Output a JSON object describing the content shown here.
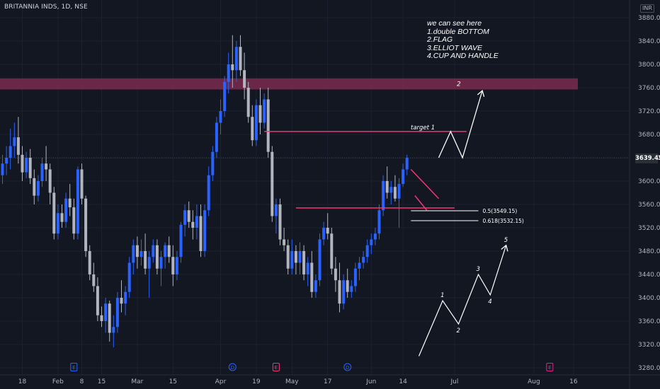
{
  "header": {
    "symbol_line": "BRITANNIA INDS, 1D, NSE"
  },
  "currency": "INR",
  "last_price": {
    "label": "3639.45",
    "value": 3639.45
  },
  "annotation": {
    "lines": [
      "we can see here",
      "1.double BOTTOM",
      "2.FLAG",
      "3.ELLIOT WAVE",
      "4.CUP AND HANDLE"
    ]
  },
  "colors": {
    "bull": "#2962ff",
    "bear": "#b2b5be",
    "zone": "#7b2a4d",
    "line": "#f23672",
    "white": "#ffffff",
    "grid": "#1c2030"
  },
  "chart_data": {
    "type": "candlestick",
    "ylim": [
      3270,
      3890
    ],
    "y_ticks": [
      3280,
      3320,
      3360,
      3400,
      3440,
      3480,
      3520,
      3560,
      3600,
      3640,
      3680,
      3720,
      3760,
      3800,
      3840,
      3880
    ],
    "x_ticks": [
      {
        "label": "18",
        "bar": 5
      },
      {
        "label": "Feb",
        "bar": 14
      },
      {
        "label": "8",
        "bar": 20
      },
      {
        "label": "15",
        "bar": 25
      },
      {
        "label": "Mar",
        "bar": 34
      },
      {
        "label": "15",
        "bar": 43
      },
      {
        "label": "Apr",
        "bar": 55
      },
      {
        "label": "19",
        "bar": 64
      },
      {
        "label": "May",
        "bar": 73
      },
      {
        "label": "17",
        "bar": 82
      },
      {
        "label": "Jun",
        "bar": 93
      },
      {
        "label": "14",
        "bar": 101
      },
      {
        "label": "Jul",
        "bar": 114
      },
      {
        "label": "Aug",
        "bar": 134
      },
      {
        "label": "16",
        "bar": 144
      }
    ],
    "events": [
      {
        "label": "E",
        "bar": 18,
        "color": "#2962ff"
      },
      {
        "label": "D",
        "bar": 58,
        "color": "#2962ff"
      },
      {
        "label": "E",
        "bar": 69,
        "color": "#f23672"
      },
      {
        "label": "D",
        "bar": 87,
        "color": "#2962ff"
      },
      {
        "label": "E",
        "bar": 138,
        "color": "#e91e8c"
      }
    ],
    "candles": [
      [
        3610,
        3645,
        3595,
        3630
      ],
      [
        3630,
        3660,
        3610,
        3640
      ],
      [
        3640,
        3690,
        3620,
        3660
      ],
      [
        3660,
        3700,
        3640,
        3675
      ],
      [
        3675,
        3710,
        3630,
        3645
      ],
      [
        3645,
        3660,
        3600,
        3615
      ],
      [
        3615,
        3650,
        3605,
        3640
      ],
      [
        3640,
        3655,
        3595,
        3605
      ],
      [
        3605,
        3620,
        3560,
        3575
      ],
      [
        3575,
        3610,
        3565,
        3600
      ],
      [
        3600,
        3640,
        3590,
        3630
      ],
      [
        3630,
        3660,
        3600,
        3620
      ],
      [
        3620,
        3630,
        3560,
        3580
      ],
      [
        3580,
        3590,
        3500,
        3510
      ],
      [
        3510,
        3560,
        3500,
        3545
      ],
      [
        3545,
        3560,
        3520,
        3530
      ],
      [
        3530,
        3580,
        3520,
        3570
      ],
      [
        3570,
        3595,
        3540,
        3555
      ],
      [
        3555,
        3570,
        3500,
        3510
      ],
      [
        3510,
        3625,
        3500,
        3620
      ],
      [
        3620,
        3630,
        3560,
        3570
      ],
      [
        3570,
        3575,
        3470,
        3480
      ],
      [
        3480,
        3490,
        3430,
        3440
      ],
      [
        3440,
        3460,
        3410,
        3420
      ],
      [
        3420,
        3435,
        3360,
        3370
      ],
      [
        3370,
        3385,
        3350,
        3360
      ],
      [
        3360,
        3400,
        3340,
        3390
      ],
      [
        3390,
        3395,
        3325,
        3340
      ],
      [
        3340,
        3370,
        3315,
        3350
      ],
      [
        3350,
        3410,
        3340,
        3400
      ],
      [
        3400,
        3430,
        3375,
        3390
      ],
      [
        3390,
        3420,
        3370,
        3410
      ],
      [
        3410,
        3470,
        3400,
        3460
      ],
      [
        3460,
        3500,
        3440,
        3490
      ],
      [
        3490,
        3505,
        3450,
        3470
      ],
      [
        3470,
        3500,
        3455,
        3480
      ],
      [
        3480,
        3510,
        3440,
        3450
      ],
      [
        3450,
        3480,
        3400,
        3470
      ],
      [
        3470,
        3500,
        3460,
        3490
      ],
      [
        3490,
        3500,
        3440,
        3450
      ],
      [
        3450,
        3480,
        3420,
        3470
      ],
      [
        3470,
        3495,
        3450,
        3490
      ],
      [
        3490,
        3505,
        3460,
        3470
      ],
      [
        3470,
        3490,
        3420,
        3440
      ],
      [
        3440,
        3480,
        3430,
        3470
      ],
      [
        3470,
        3530,
        3460,
        3525
      ],
      [
        3525,
        3560,
        3505,
        3550
      ],
      [
        3550,
        3565,
        3520,
        3530
      ],
      [
        3530,
        3550,
        3500,
        3520
      ],
      [
        3520,
        3560,
        3500,
        3540
      ],
      [
        3540,
        3560,
        3470,
        3480
      ],
      [
        3480,
        3560,
        3470,
        3550
      ],
      [
        3550,
        3625,
        3540,
        3610
      ],
      [
        3610,
        3660,
        3600,
        3650
      ],
      [
        3650,
        3710,
        3640,
        3700
      ],
      [
        3700,
        3740,
        3680,
        3720
      ],
      [
        3720,
        3780,
        3710,
        3770
      ],
      [
        3770,
        3820,
        3750,
        3800
      ],
      [
        3800,
        3850,
        3760,
        3790
      ],
      [
        3790,
        3840,
        3770,
        3830
      ],
      [
        3830,
        3850,
        3780,
        3790
      ],
      [
        3790,
        3820,
        3740,
        3760
      ],
      [
        3760,
        3770,
        3700,
        3710
      ],
      [
        3710,
        3730,
        3660,
        3670
      ],
      [
        3670,
        3740,
        3660,
        3730
      ],
      [
        3730,
        3760,
        3680,
        3700
      ],
      [
        3700,
        3750,
        3690,
        3740
      ],
      [
        3740,
        3760,
        3640,
        3650
      ],
      [
        3650,
        3660,
        3530,
        3540
      ],
      [
        3540,
        3570,
        3510,
        3560
      ],
      [
        3560,
        3570,
        3490,
        3500
      ],
      [
        3500,
        3520,
        3480,
        3490
      ],
      [
        3490,
        3500,
        3440,
        3450
      ],
      [
        3450,
        3500,
        3440,
        3480
      ],
      [
        3480,
        3490,
        3440,
        3460
      ],
      [
        3460,
        3495,
        3440,
        3480
      ],
      [
        3480,
        3490,
        3430,
        3440
      ],
      [
        3440,
        3470,
        3420,
        3460
      ],
      [
        3460,
        3480,
        3400,
        3410
      ],
      [
        3410,
        3440,
        3400,
        3430
      ],
      [
        3430,
        3510,
        3420,
        3500
      ],
      [
        3500,
        3530,
        3490,
        3520
      ],
      [
        3520,
        3545,
        3500,
        3510
      ],
      [
        3510,
        3520,
        3440,
        3450
      ],
      [
        3450,
        3470,
        3410,
        3430
      ],
      [
        3430,
        3460,
        3375,
        3390
      ],
      [
        3390,
        3440,
        3380,
        3430
      ],
      [
        3430,
        3450,
        3400,
        3410
      ],
      [
        3410,
        3430,
        3400,
        3420
      ],
      [
        3420,
        3460,
        3410,
        3450
      ],
      [
        3450,
        3470,
        3430,
        3460
      ],
      [
        3460,
        3480,
        3450,
        3470
      ],
      [
        3470,
        3500,
        3460,
        3490
      ],
      [
        3490,
        3510,
        3475,
        3500
      ],
      [
        3500,
        3520,
        3490,
        3510
      ],
      [
        3510,
        3560,
        3500,
        3550
      ],
      [
        3550,
        3610,
        3540,
        3600
      ],
      [
        3600,
        3625,
        3570,
        3580
      ],
      [
        3580,
        3600,
        3560,
        3590
      ],
      [
        3590,
        3610,
        3565,
        3570
      ],
      [
        3570,
        3605,
        3520,
        3595
      ],
      [
        3595,
        3630,
        3590,
        3620
      ],
      [
        3620,
        3645,
        3610,
        3640
      ]
    ],
    "bar_start_x": 3.5,
    "bar_spacing": 5.6,
    "horizontal_lines": [
      {
        "name": "target 1",
        "y": 3685,
        "from_bar": 66,
        "to_bar": 117
      },
      {
        "name": "",
        "y": 3554,
        "from_bar": 74,
        "to_bar": 114
      },
      {
        "name": "0.5(3549.15)",
        "y": 3549.15,
        "from_bar": 103,
        "to_bar": 120
      },
      {
        "name": "0.618(3532.15)",
        "y": 3532.15,
        "from_bar": 103,
        "to_bar": 120
      }
    ],
    "resistance_zone": {
      "y_low": 3757,
      "y_high": 3776,
      "label": "2"
    },
    "flag_lines": [
      {
        "from": [
          103,
          3620
        ],
        "to": [
          110,
          3570
        ]
      },
      {
        "from": [
          104,
          3575
        ],
        "to": [
          107,
          3550
        ]
      }
    ],
    "projection_path": [
      [
        110,
        3640
      ],
      [
        113,
        3685
      ],
      [
        116,
        3640
      ],
      [
        121,
        3755
      ]
    ],
    "elliott_waves": [
      {
        "points": [
          [
            105,
            3300
          ],
          [
            111,
            3395
          ],
          [
            115,
            3355
          ],
          [
            120,
            3440
          ],
          [
            123,
            3405
          ],
          [
            127,
            3490
          ]
        ],
        "labels": [
          "1",
          "2",
          "3",
          "4",
          "5"
        ]
      }
    ]
  }
}
